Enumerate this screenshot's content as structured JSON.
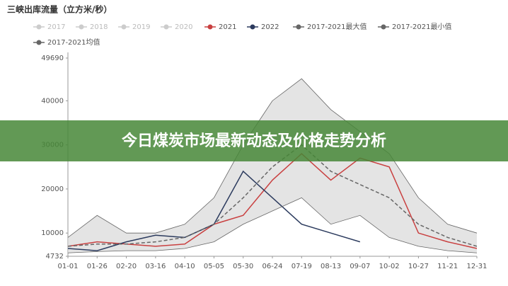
{
  "chart_data": {
    "type": "line",
    "title": "三峡出库流量（立方米/秒）",
    "categories": [
      "01-01",
      "01-26",
      "02-20",
      "03-16",
      "04-10",
      "05-05",
      "05-30",
      "06-24",
      "07-19",
      "08-13",
      "09-07",
      "10-02",
      "10-27",
      "11-21",
      "12-31"
    ],
    "ylim": [
      4732,
      49690
    ],
    "yticks": [
      4732,
      10000,
      20000,
      30000,
      40000,
      49690
    ],
    "series": [
      {
        "name": "2017",
        "color": "#cccccc",
        "hidden": true,
        "values": [
          null,
          null,
          null,
          null,
          null,
          null,
          null,
          null,
          null,
          null,
          null,
          null,
          null,
          null,
          null
        ]
      },
      {
        "name": "2018",
        "color": "#cccccc",
        "hidden": true,
        "values": [
          null,
          null,
          null,
          null,
          null,
          null,
          null,
          null,
          null,
          null,
          null,
          null,
          null,
          null,
          null
        ]
      },
      {
        "name": "2019",
        "color": "#cccccc",
        "hidden": true,
        "values": [
          null,
          null,
          null,
          null,
          null,
          null,
          null,
          null,
          null,
          null,
          null,
          null,
          null,
          null,
          null
        ]
      },
      {
        "name": "2020",
        "color": "#cccccc",
        "hidden": true,
        "values": [
          null,
          null,
          null,
          null,
          null,
          null,
          null,
          null,
          null,
          null,
          null,
          null,
          null,
          null,
          null
        ]
      },
      {
        "name": "2021",
        "color": "#c94040",
        "values": [
          7000,
          8000,
          7500,
          7000,
          7500,
          12000,
          14000,
          22000,
          28000,
          22000,
          27000,
          25000,
          10000,
          8000,
          6500
        ]
      },
      {
        "name": "2022",
        "color": "#2c3b5e",
        "values": [
          6500,
          6000,
          8000,
          9500,
          9000,
          12000,
          24000,
          18000,
          12000,
          10000,
          8000,
          null,
          null,
          null,
          null
        ]
      },
      {
        "name": "2017-2021最大值",
        "color": "#666666",
        "band": "upper",
        "values": [
          9000,
          14000,
          10000,
          10000,
          12000,
          18000,
          30000,
          40000,
          45000,
          38000,
          33000,
          28000,
          18000,
          12000,
          10000
        ]
      },
      {
        "name": "2017-2021最小值",
        "color": "#666666",
        "band": "lower",
        "values": [
          5500,
          5800,
          6000,
          6000,
          6500,
          8000,
          12000,
          15000,
          18000,
          12000,
          14000,
          9000,
          7000,
          6000,
          5500
        ]
      },
      {
        "name": "2017-2021均值",
        "color": "#666666",
        "dashed": true,
        "values": [
          7000,
          7500,
          7500,
          8000,
          9000,
          12000,
          18000,
          25000,
          30000,
          24000,
          21000,
          18000,
          12000,
          9000,
          7000
        ]
      }
    ]
  },
  "banner": "今日煤炭市场最新动态及价格走势分析"
}
